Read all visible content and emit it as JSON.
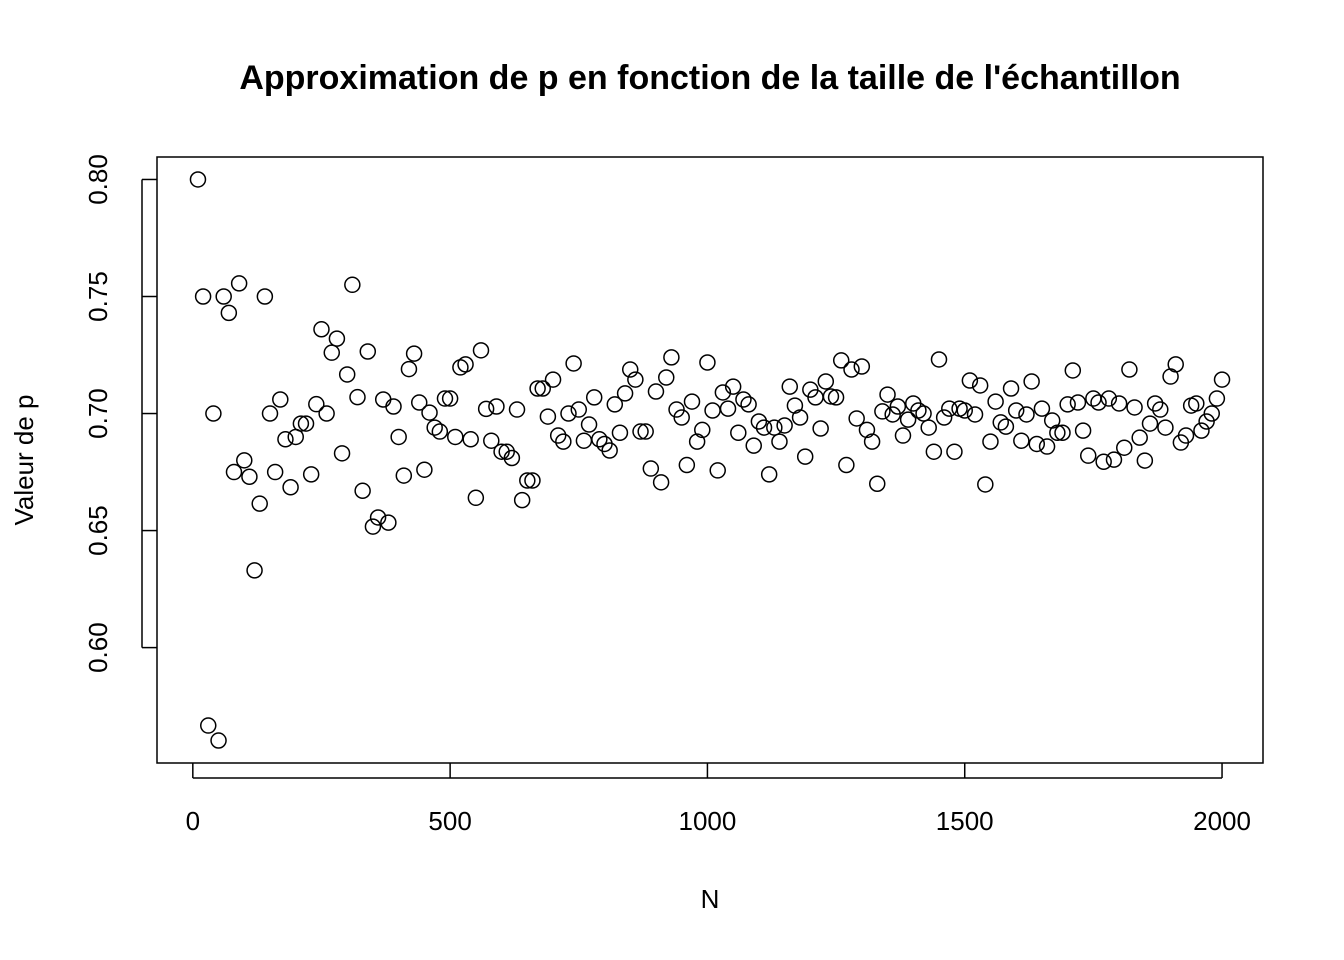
{
  "chart_data": {
    "type": "scatter",
    "title": "Approximation de p en fonction de la taille de l'échantillon",
    "x_label": "N",
    "y_label": "Valeur de p",
    "xlim": [
      -69.6,
      2079.6
    ],
    "ylim": [
      0.5507,
      0.8096
    ],
    "xticks": [
      0,
      500,
      1000,
      1500,
      2000
    ],
    "yticks": [
      {
        "value": 0.6,
        "label": "0.60"
      },
      0.65,
      {
        "value": 0.7,
        "label": "0.70"
      },
      0.75,
      {
        "value": 0.8,
        "label": "0.80"
      }
    ],
    "color": "#000000",
    "x": [
      10,
      20,
      30,
      40,
      50,
      60,
      70,
      80,
      90,
      100,
      110,
      120,
      130,
      140,
      150,
      160,
      170,
      180,
      190,
      200,
      210,
      220,
      230,
      240,
      250,
      260,
      270,
      280,
      290,
      300,
      310,
      320,
      330,
      340,
      350,
      360,
      370,
      380,
      390,
      400,
      410,
      420,
      430,
      440,
      450,
      460,
      470,
      480,
      490,
      500,
      510,
      520,
      530,
      540,
      550,
      560,
      570,
      580,
      590,
      600,
      610,
      620,
      630,
      640,
      650,
      660,
      670,
      680,
      690,
      700,
      710,
      720,
      730,
      740,
      750,
      760,
      770,
      780,
      790,
      800,
      810,
      820,
      830,
      840,
      850,
      860,
      870,
      880,
      890,
      900,
      910,
      920,
      930,
      940,
      950,
      960,
      970,
      980,
      990,
      1000,
      1010,
      1020,
      1030,
      1040,
      1050,
      1060,
      1070,
      1080,
      1090,
      1100,
      1110,
      1120,
      1130,
      1140,
      1150,
      1160,
      1170,
      1180,
      1190,
      1200,
      1210,
      1220,
      1230,
      1240,
      1250,
      1260,
      1270,
      1280,
      1290,
      1300,
      1310,
      1320,
      1330,
      1340,
      1350,
      1360,
      1370,
      1380,
      1390,
      1400,
      1410,
      1420,
      1430,
      1440,
      1450,
      1460,
      1470,
      1480,
      1490,
      1500,
      1510,
      1520,
      1530,
      1540,
      1550,
      1560,
      1570,
      1580,
      1590,
      1600,
      1610,
      1620,
      1630,
      1640,
      1650,
      1660,
      1670,
      1680,
      1690,
      1700,
      1710,
      1720,
      1730,
      1740,
      1750,
      1760,
      1770,
      1780,
      1790,
      1800,
      1810,
      1820,
      1830,
      1840,
      1850,
      1860,
      1870,
      1880,
      1890,
      1900,
      1910,
      1920,
      1930,
      1940,
      1950,
      1960,
      1970,
      1980,
      1990,
      2000
    ],
    "values": [
      0.8,
      0.75,
      0.5667,
      0.7,
      0.5603,
      0.75,
      0.743,
      0.675,
      0.7556,
      0.68,
      0.673,
      0.633,
      0.6615,
      0.75,
      0.7,
      0.675,
      0.706,
      0.689,
      0.6685,
      0.69,
      0.6957,
      0.6957,
      0.674,
      0.704,
      0.736,
      0.7,
      0.726,
      0.732,
      0.683,
      0.7167,
      0.755,
      0.707,
      0.667,
      0.7265,
      0.6517,
      0.6556,
      0.706,
      0.6534,
      0.703,
      0.69,
      0.6735,
      0.719,
      0.7256,
      0.7047,
      0.676,
      0.7004,
      0.694,
      0.6923,
      0.7064,
      0.7064,
      0.69,
      0.7197,
      0.721,
      0.689,
      0.664,
      0.727,
      0.702,
      0.6884,
      0.703,
      0.6837,
      0.6837,
      0.681,
      0.7017,
      0.663,
      0.6714,
      0.6714,
      0.7107,
      0.7107,
      0.6987,
      0.7145,
      0.6906,
      0.688,
      0.7,
      0.7214,
      0.7017,
      0.6884,
      0.6953,
      0.7069,
      0.689,
      0.687,
      0.6842,
      0.7039,
      0.6918,
      0.7086,
      0.7188,
      0.7145,
      0.6923,
      0.6923,
      0.6765,
      0.7094,
      0.6706,
      0.7154,
      0.724,
      0.7017,
      0.6983,
      0.678,
      0.7051,
      0.688,
      0.693,
      0.7218,
      0.7013,
      0.6757,
      0.709,
      0.7021,
      0.7115,
      0.6918,
      0.706,
      0.7039,
      0.6863,
      0.6966,
      0.694,
      0.674,
      0.694,
      0.688,
      0.6949,
      0.7115,
      0.7034,
      0.6983,
      0.6816,
      0.7102,
      0.7069,
      0.6936,
      0.7137,
      0.7073,
      0.7069,
      0.7227,
      0.678,
      0.7188,
      0.6979,
      0.7201,
      0.693,
      0.688,
      0.67,
      0.7009,
      0.7081,
      0.6996,
      0.703,
      0.6906,
      0.6974,
      0.7043,
      0.7013,
      0.7,
      0.694,
      0.6837,
      0.7231,
      0.6983,
      0.7021,
      0.6837,
      0.7021,
      0.7013,
      0.7141,
      0.6996,
      0.712,
      0.6697,
      0.688,
      0.7051,
      0.6962,
      0.6944,
      0.7107,
      0.7013,
      0.6884,
      0.6996,
      0.7137,
      0.687,
      0.7021,
      0.6859,
      0.697,
      0.6918,
      0.6918,
      0.7039,
      0.7184,
      0.7047,
      0.6927,
      0.682,
      0.7064,
      0.7047,
      0.6794,
      0.7064,
      0.6803,
      0.7043,
      0.6854,
      0.7188,
      0.7026,
      0.6897,
      0.6799,
      0.6957,
      0.7043,
      0.7017,
      0.694,
      0.7158,
      0.721,
      0.6876,
      0.6906,
      0.7034,
      0.7043,
      0.6927,
      0.6966,
      0.7,
      0.7064,
      0.7145
    ]
  }
}
